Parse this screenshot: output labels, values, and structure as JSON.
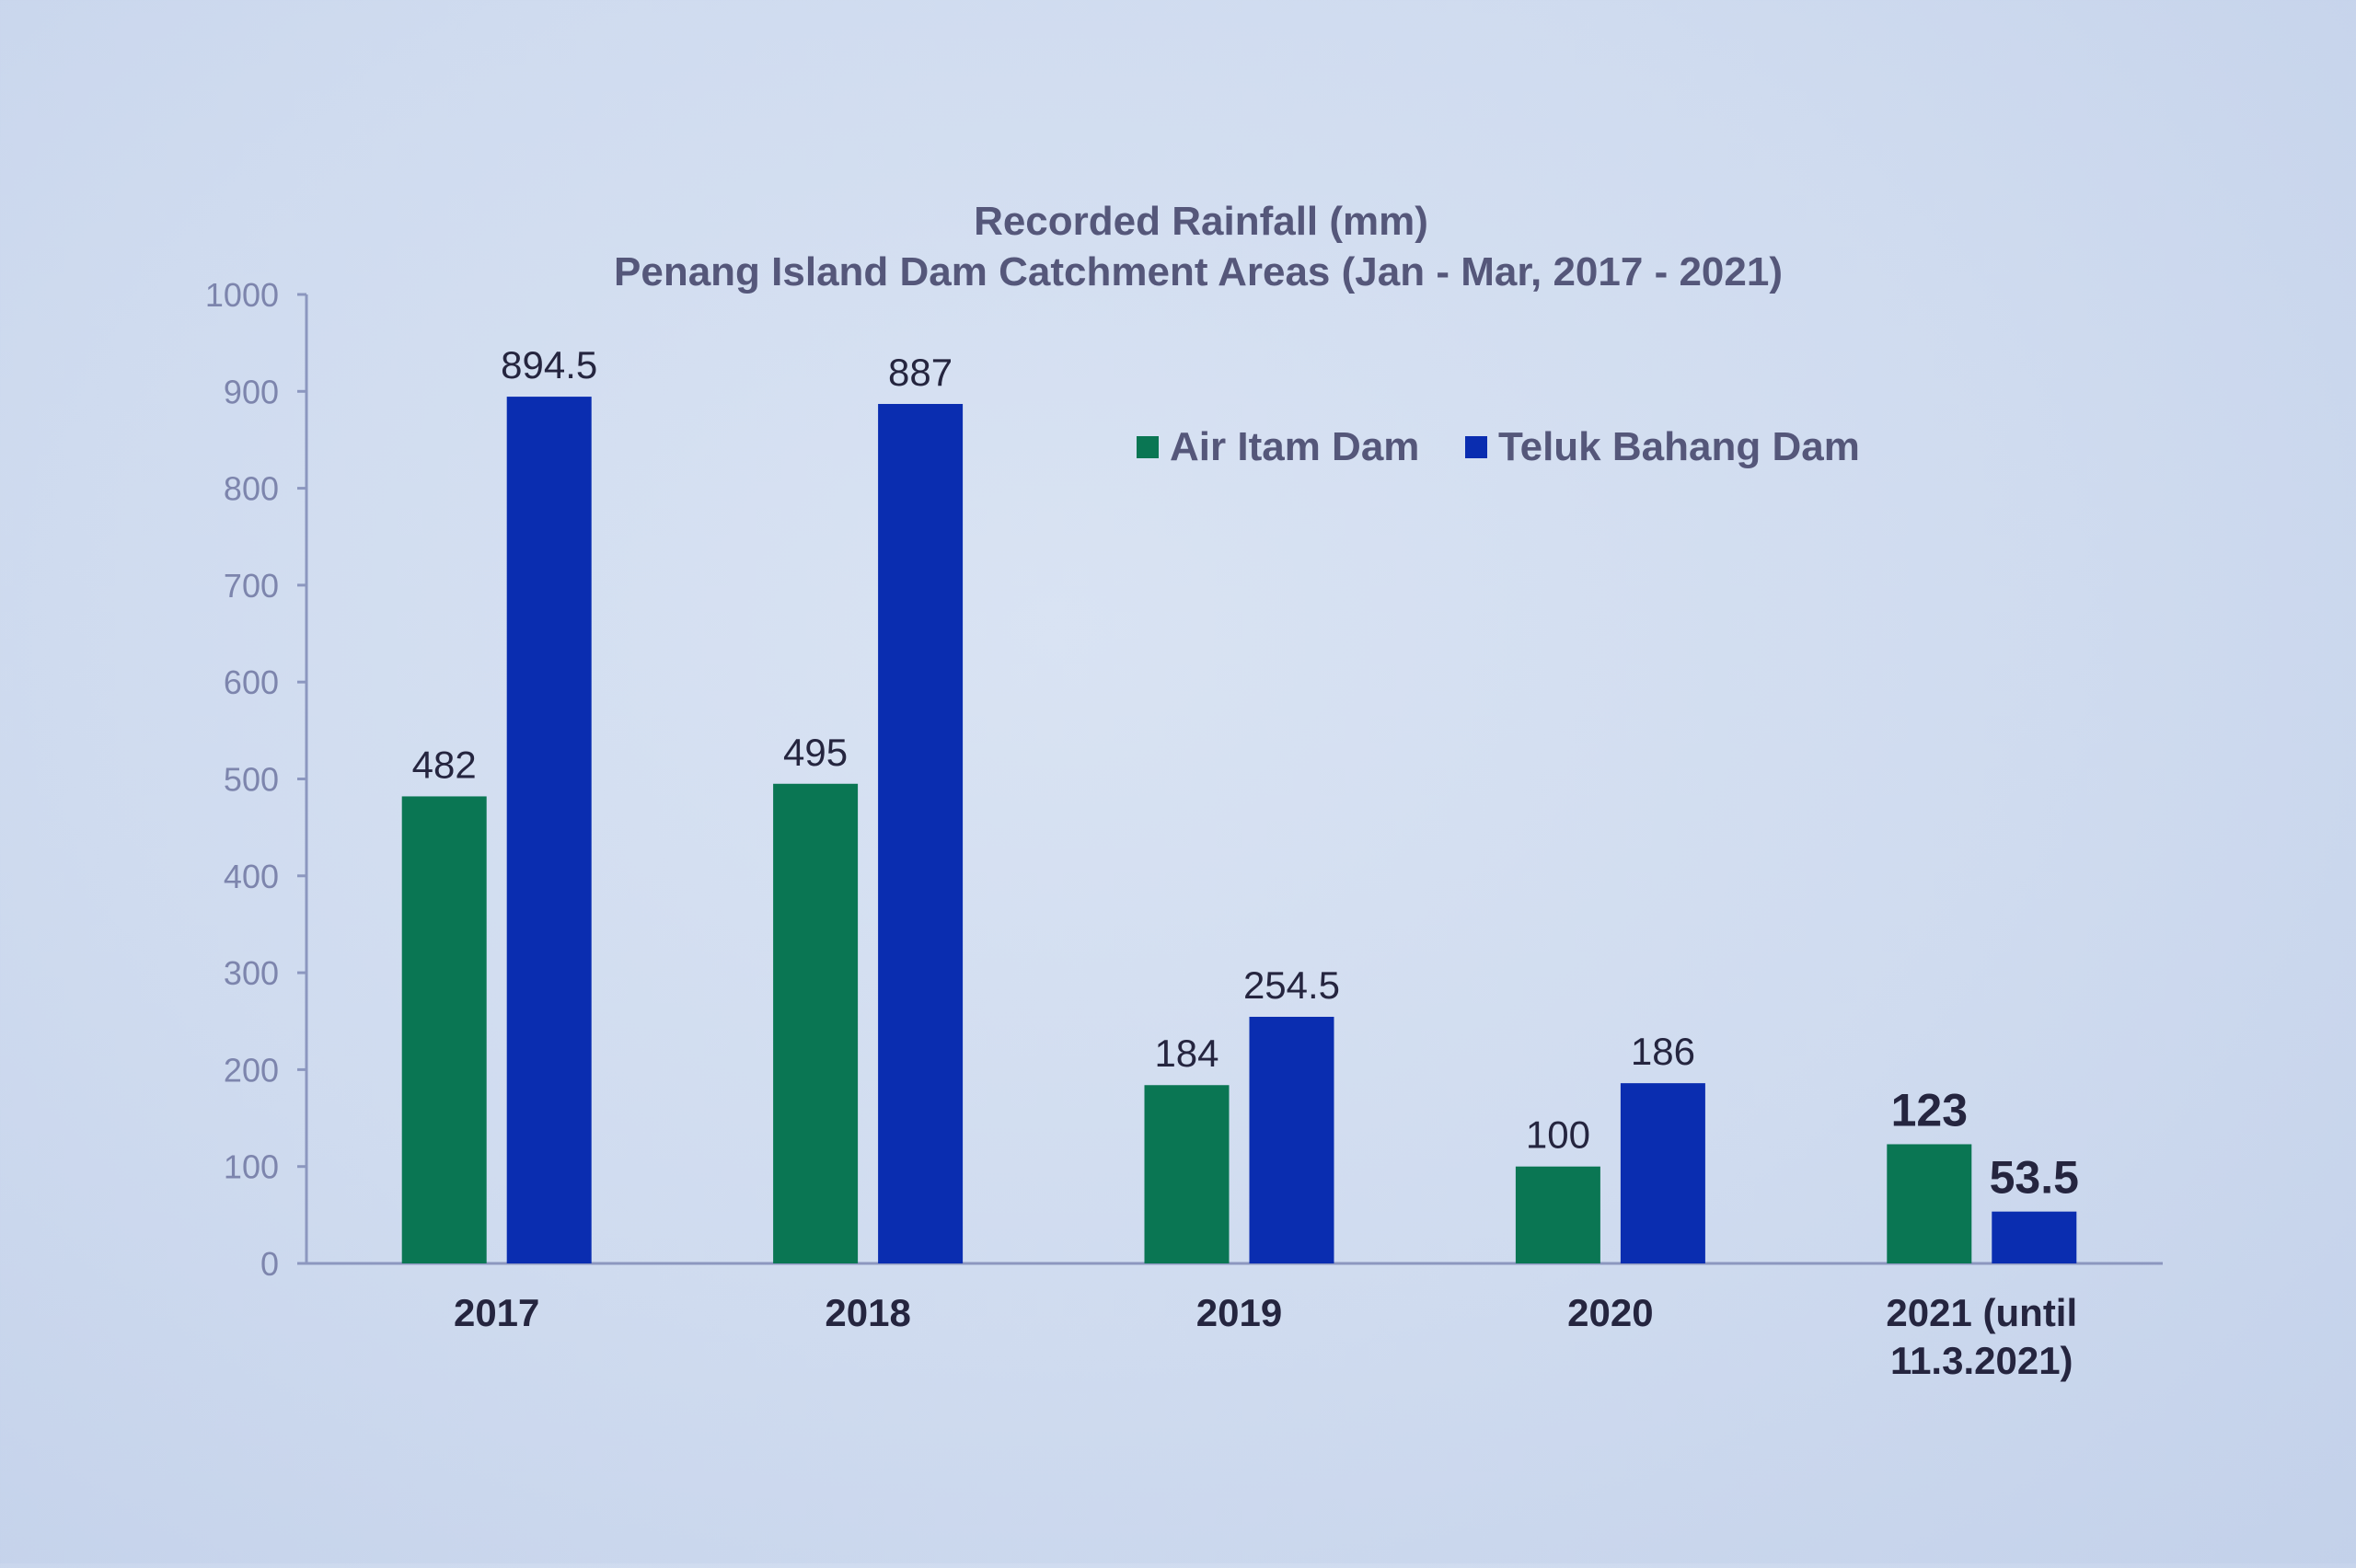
{
  "chart_data": {
    "type": "bar",
    "title": "Recorded Rainfall (mm)",
    "subtitle": "Penang Island Dam Catchment Areas (Jan - Mar, 2017 - 2021)",
    "categories": [
      [
        "2017"
      ],
      [
        "2018"
      ],
      [
        "2019"
      ],
      [
        "2020"
      ],
      [
        "2021 (until",
        "11.3.2021)"
      ]
    ],
    "series": [
      {
        "name": "Air Itam Dam",
        "color": "#0a7653",
        "values": [
          482,
          495,
          184,
          100,
          123
        ],
        "labels": [
          "482",
          "495",
          "184",
          "100",
          "123"
        ]
      },
      {
        "name": "Teluk Bahang Dam",
        "color": "#0a2db0",
        "values": [
          894.5,
          887,
          254.5,
          186,
          53.5
        ],
        "labels": [
          "894.5",
          "887",
          "254.5",
          "186",
          "53.5"
        ]
      }
    ],
    "y_ticks": [
      "0",
      "100",
      "200",
      "300",
      "400",
      "500",
      "600",
      "700",
      "800",
      "900",
      "1000"
    ],
    "ylim": [
      0,
      1000
    ],
    "xlabel": "",
    "ylabel": "",
    "grid": false,
    "legend": "top-right",
    "colors": {
      "axis": "#8c97bf",
      "tick_label": "#7d85ad",
      "title": "#55577a",
      "legend_text": "#55577a",
      "value_label": "#25253f",
      "category_label": "#25253f"
    }
  }
}
